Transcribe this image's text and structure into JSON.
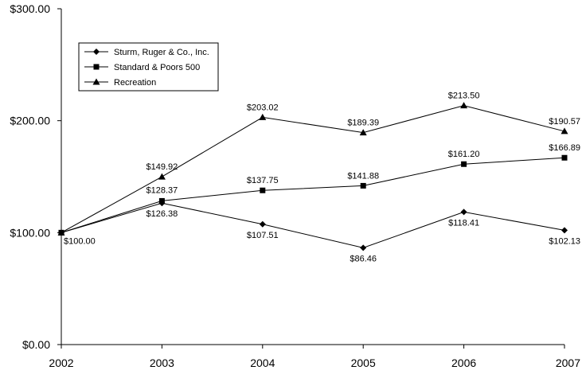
{
  "chart_data": {
    "type": "line",
    "title": "",
    "xlabel": "",
    "ylabel": "",
    "x": [
      "2002",
      "2003",
      "2004",
      "2005",
      "2006",
      "2007"
    ],
    "ylim": [
      0,
      300
    ],
    "yticks": [
      0,
      100,
      200,
      300
    ],
    "ytick_labels": [
      "$0.00",
      "$100.00",
      "$200.00",
      "$300.00"
    ],
    "grid": false,
    "legend_position": "top-left",
    "series": [
      {
        "name": "Sturm, Ruger & Co., Inc.",
        "marker": "diamond",
        "values": [
          100.0,
          126.38,
          107.51,
          86.46,
          118.41,
          102.13
        ],
        "labels": [
          "$100.00",
          "$126.38",
          "$107.51",
          "$86.46",
          "$118.41",
          "$102.13"
        ]
      },
      {
        "name": "Standard & Poors 500",
        "marker": "square",
        "values": [
          100.0,
          128.37,
          137.75,
          141.88,
          161.2,
          166.89
        ],
        "labels": [
          "",
          "$128.37",
          "$137.75",
          "$141.88",
          "$161.20",
          "$166.89"
        ]
      },
      {
        "name": "Recreation",
        "marker": "triangle",
        "values": [
          100.0,
          149.92,
          203.02,
          189.39,
          213.5,
          190.57
        ],
        "labels": [
          "",
          "$149.92",
          "$203.02",
          "$189.39",
          "$213.50",
          "$190.57"
        ]
      }
    ]
  }
}
